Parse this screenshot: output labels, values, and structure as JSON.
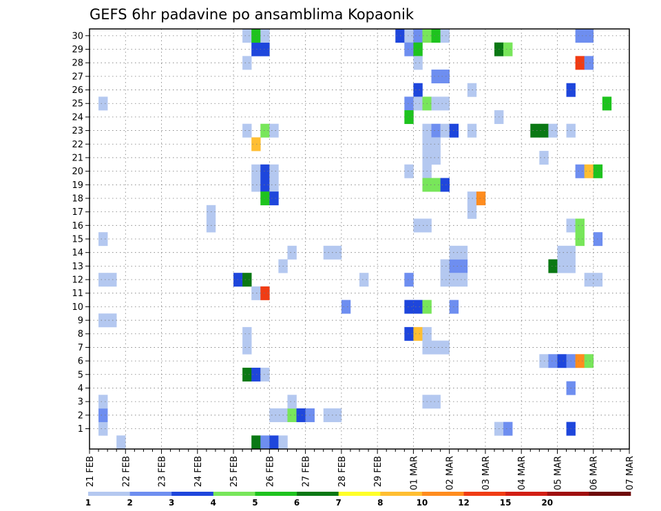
{
  "chart_data": {
    "type": "heatmap",
    "title": "GEFS 6hr padavine po ansamblima Kopaonik",
    "members": [
      1,
      2,
      3,
      4,
      5,
      6,
      7,
      8,
      9,
      10,
      11,
      12,
      13,
      14,
      15,
      16,
      17,
      18,
      19,
      20,
      21,
      22,
      23,
      24,
      25,
      26,
      27,
      28,
      29,
      30
    ],
    "x_tick_labels": [
      "21 FEB",
      "22 FEB",
      "23 FEB",
      "24 FEB",
      "25 FEB",
      "26 FEB",
      "27 FEB",
      "28 FEB",
      "29 FEB",
      "01 MAR",
      "02 MAR",
      "03 MAR",
      "04 MAR",
      "05 MAR",
      "06 MAR",
      "07 MAR"
    ],
    "steps_per_day": 4,
    "total_steps": 60,
    "grid": true,
    "legend": {
      "position": "bottom",
      "levels": [
        "1",
        "2",
        "3",
        "4",
        "5",
        "6",
        "7",
        "8",
        "10",
        "12",
        "15",
        "20",
        ""
      ],
      "colors": [
        "#b4c8f0",
        "#6e8ef0",
        "#1e46dc",
        "#78e65a",
        "#1ec31e",
        "#0a7814",
        "#ffff28",
        "#ffbe32",
        "#ff8c1e",
        "#f03c14",
        "#d21e14",
        "#a00f0f",
        "#6e0a0a"
      ]
    },
    "points": [
      {
        "step": 3,
        "member": 0,
        "level": 1
      },
      {
        "step": 1,
        "member": 1,
        "level": 1
      },
      {
        "step": 1,
        "member": 2,
        "level": 2
      },
      {
        "step": 1,
        "member": 3,
        "level": 1
      },
      {
        "step": 1,
        "member": 9,
        "level": 1
      },
      {
        "step": 2,
        "member": 9,
        "level": 1
      },
      {
        "step": 1,
        "member": 12,
        "level": 1
      },
      {
        "step": 2,
        "member": 12,
        "level": 1
      },
      {
        "step": 1,
        "member": 15,
        "level": 1
      },
      {
        "step": 1,
        "member": 25,
        "level": 1
      },
      {
        "step": 13,
        "member": 16,
        "level": 1
      },
      {
        "step": 18,
        "member": 0,
        "level": 6
      },
      {
        "step": 19,
        "member": 0,
        "level": 2
      },
      {
        "step": 20,
        "member": 0,
        "level": 3
      },
      {
        "step": 21,
        "member": 0,
        "level": 1
      },
      {
        "step": 20,
        "member": 2,
        "level": 1
      },
      {
        "step": 21,
        "member": 2,
        "level": 1
      },
      {
        "step": 22,
        "member": 2,
        "level": 4
      },
      {
        "step": 23,
        "member": 2,
        "level": 3
      },
      {
        "step": 24,
        "member": 2,
        "level": 2
      },
      {
        "step": 26,
        "member": 2,
        "level": 1
      },
      {
        "step": 27,
        "member": 2,
        "level": 1
      },
      {
        "step": 22,
        "member": 3,
        "level": 1
      },
      {
        "step": 17,
        "member": 5,
        "level": 6
      },
      {
        "step": 18,
        "member": 5,
        "level": 3
      },
      {
        "step": 19,
        "member": 5,
        "level": 1
      },
      {
        "step": 17,
        "member": 7,
        "level": 1
      },
      {
        "step": 17,
        "member": 8,
        "level": 1
      },
      {
        "step": 16,
        "member": 12,
        "level": 3
      },
      {
        "step": 17,
        "member": 12,
        "level": 6
      },
      {
        "step": 18,
        "member": 11,
        "level": 1
      },
      {
        "step": 19,
        "member": 11,
        "level": 12
      },
      {
        "step": 21,
        "member": 13,
        "level": 1
      },
      {
        "step": 22,
        "member": 14,
        "level": 1
      },
      {
        "step": 18,
        "member": 19,
        "level": 1
      },
      {
        "step": 19,
        "member": 19,
        "level": 3
      },
      {
        "step": 20,
        "member": 19,
        "level": 1
      },
      {
        "step": 19,
        "member": 18,
        "level": 5
      },
      {
        "step": 20,
        "member": 18,
        "level": 3
      },
      {
        "step": 18,
        "member": 20,
        "level": 1
      },
      {
        "step": 19,
        "member": 20,
        "level": 3
      },
      {
        "step": 20,
        "member": 20,
        "level": 1
      },
      {
        "step": 18,
        "member": 22,
        "level": 8
      },
      {
        "step": 17,
        "member": 23,
        "level": 1
      },
      {
        "step": 19,
        "member": 23,
        "level": 4
      },
      {
        "step": 20,
        "member": 23,
        "level": 1
      },
      {
        "step": 17,
        "member": 28,
        "level": 1
      },
      {
        "step": 18,
        "member": 29,
        "level": 3
      },
      {
        "step": 19,
        "member": 29,
        "level": 3
      },
      {
        "step": 17,
        "member": 30,
        "level": 1
      },
      {
        "step": 18,
        "member": 30,
        "level": 5
      },
      {
        "step": 19,
        "member": 30,
        "level": 1
      },
      {
        "step": 13,
        "member": 17,
        "level": 1
      },
      {
        "step": 26,
        "member": 14,
        "level": 1
      },
      {
        "step": 27,
        "member": 14,
        "level": 1
      },
      {
        "step": 28,
        "member": 10,
        "level": 2
      },
      {
        "step": 30,
        "member": 12,
        "level": 1
      },
      {
        "step": 34,
        "member": 30,
        "level": 3
      },
      {
        "step": 35,
        "member": 30,
        "level": 1
      },
      {
        "step": 36,
        "member": 30,
        "level": 2
      },
      {
        "step": 37,
        "member": 30,
        "level": 4
      },
      {
        "step": 38,
        "member": 30,
        "level": 5
      },
      {
        "step": 39,
        "member": 30,
        "level": 1
      },
      {
        "step": 35,
        "member": 29,
        "level": 2
      },
      {
        "step": 36,
        "member": 29,
        "level": 5
      },
      {
        "step": 36,
        "member": 28,
        "level": 1
      },
      {
        "step": 38,
        "member": 27,
        "level": 2
      },
      {
        "step": 39,
        "member": 27,
        "level": 2
      },
      {
        "step": 36,
        "member": 26,
        "level": 3
      },
      {
        "step": 35,
        "member": 25,
        "level": 2
      },
      {
        "step": 36,
        "member": 25,
        "level": 1
      },
      {
        "step": 37,
        "member": 25,
        "level": 4
      },
      {
        "step": 38,
        "member": 25,
        "level": 1
      },
      {
        "step": 39,
        "member": 25,
        "level": 1
      },
      {
        "step": 35,
        "member": 24,
        "level": 5
      },
      {
        "step": 37,
        "member": 23,
        "level": 1
      },
      {
        "step": 38,
        "member": 23,
        "level": 2
      },
      {
        "step": 39,
        "member": 23,
        "level": 1
      },
      {
        "step": 40,
        "member": 23,
        "level": 3
      },
      {
        "step": 37,
        "member": 22,
        "level": 1
      },
      {
        "step": 38,
        "member": 22,
        "level": 1
      },
      {
        "step": 37,
        "member": 21,
        "level": 1
      },
      {
        "step": 38,
        "member": 21,
        "level": 1
      },
      {
        "step": 35,
        "member": 20,
        "level": 1
      },
      {
        "step": 37,
        "member": 20,
        "level": 1
      },
      {
        "step": 37,
        "member": 19,
        "level": 4
      },
      {
        "step": 38,
        "member": 19,
        "level": 4
      },
      {
        "step": 39,
        "member": 19,
        "level": 3
      },
      {
        "step": 36,
        "member": 16,
        "level": 1
      },
      {
        "step": 37,
        "member": 16,
        "level": 1
      },
      {
        "step": 35,
        "member": 12,
        "level": 2
      },
      {
        "step": 35,
        "member": 10,
        "level": 3
      },
      {
        "step": 36,
        "member": 10,
        "level": 3
      },
      {
        "step": 37,
        "member": 10,
        "level": 4
      },
      {
        "step": 40,
        "member": 10,
        "level": 2
      },
      {
        "step": 39,
        "member": 13,
        "level": 1
      },
      {
        "step": 40,
        "member": 13,
        "level": 2
      },
      {
        "step": 41,
        "member": 13,
        "level": 2
      },
      {
        "step": 39,
        "member": 12,
        "level": 1
      },
      {
        "step": 40,
        "member": 12,
        "level": 1
      },
      {
        "step": 41,
        "member": 12,
        "level": 1
      },
      {
        "step": 40,
        "member": 14,
        "level": 1
      },
      {
        "step": 41,
        "member": 14,
        "level": 1
      },
      {
        "step": 35,
        "member": 8,
        "level": 3
      },
      {
        "step": 36,
        "member": 8,
        "level": 8
      },
      {
        "step": 37,
        "member": 8,
        "level": 1
      },
      {
        "step": 37,
        "member": 7,
        "level": 1
      },
      {
        "step": 38,
        "member": 7,
        "level": 1
      },
      {
        "step": 39,
        "member": 7,
        "level": 1
      },
      {
        "step": 37,
        "member": 3,
        "level": 1
      },
      {
        "step": 38,
        "member": 3,
        "level": 1
      },
      {
        "step": 42,
        "member": 26,
        "level": 1
      },
      {
        "step": 42,
        "member": 23,
        "level": 1
      },
      {
        "step": 42,
        "member": 18,
        "level": 1
      },
      {
        "step": 42,
        "member": 17,
        "level": 1
      },
      {
        "step": 43,
        "member": 18,
        "level": 10
      },
      {
        "step": 45,
        "member": 29,
        "level": 6
      },
      {
        "step": 46,
        "member": 29,
        "level": 4
      },
      {
        "step": 45,
        "member": 24,
        "level": 1
      },
      {
        "step": 45,
        "member": 1,
        "level": 1
      },
      {
        "step": 46,
        "member": 1,
        "level": 2
      },
      {
        "step": 49,
        "member": 23,
        "level": 6
      },
      {
        "step": 50,
        "member": 23,
        "level": 6
      },
      {
        "step": 51,
        "member": 23,
        "level": 1
      },
      {
        "step": 53,
        "member": 23,
        "level": 1
      },
      {
        "step": 53,
        "member": 26,
        "level": 3
      },
      {
        "step": 50,
        "member": 21,
        "level": 1
      },
      {
        "step": 54,
        "member": 20,
        "level": 2
      },
      {
        "step": 55,
        "member": 20,
        "level": 8
      },
      {
        "step": 56,
        "member": 20,
        "level": 5
      },
      {
        "step": 54,
        "member": 28,
        "level": 12
      },
      {
        "step": 55,
        "member": 28,
        "level": 2
      },
      {
        "step": 54,
        "member": 30,
        "level": 2
      },
      {
        "step": 55,
        "member": 30,
        "level": 2
      },
      {
        "step": 57,
        "member": 25,
        "level": 5
      },
      {
        "step": 53,
        "member": 16,
        "level": 1
      },
      {
        "step": 54,
        "member": 16,
        "level": 4
      },
      {
        "step": 54,
        "member": 15,
        "level": 4
      },
      {
        "step": 56,
        "member": 15,
        "level": 2
      },
      {
        "step": 51,
        "member": 13,
        "level": 6
      },
      {
        "step": 52,
        "member": 13,
        "level": 1
      },
      {
        "step": 53,
        "member": 13,
        "level": 1
      },
      {
        "step": 52,
        "member": 14,
        "level": 1
      },
      {
        "step": 53,
        "member": 14,
        "level": 1
      },
      {
        "step": 55,
        "member": 12,
        "level": 1
      },
      {
        "step": 56,
        "member": 12,
        "level": 1
      },
      {
        "step": 50,
        "member": 6,
        "level": 1
      },
      {
        "step": 51,
        "member": 6,
        "level": 2
      },
      {
        "step": 52,
        "member": 6,
        "level": 3
      },
      {
        "step": 53,
        "member": 6,
        "level": 2
      },
      {
        "step": 54,
        "member": 6,
        "level": 10
      },
      {
        "step": 55,
        "member": 6,
        "level": 4
      },
      {
        "step": 53,
        "member": 4,
        "level": 2
      },
      {
        "step": 53,
        "member": 1,
        "level": 3
      }
    ]
  }
}
